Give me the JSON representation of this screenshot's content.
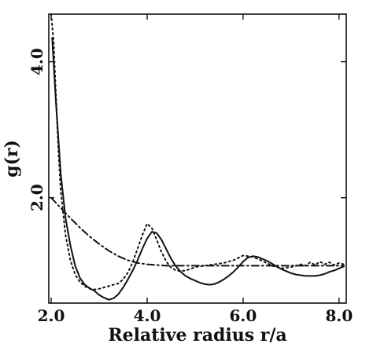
{
  "chart_data": {
    "type": "line",
    "title": "",
    "xlabel": "Relative radius r/a",
    "ylabel": "g(r)",
    "xlim": [
      1.95,
      8.15
    ],
    "ylim": [
      0.45,
      4.7
    ],
    "xticks": [
      2.0,
      4.0,
      6.0,
      8.0
    ],
    "xtick_labels": [
      "2.0",
      "4.0",
      "6.0",
      "8.0"
    ],
    "yticks": [
      2.0,
      4.0
    ],
    "ytick_labels": [
      "2.0",
      "4.0"
    ],
    "grid": false,
    "legend": "none",
    "series": [
      {
        "style": "solid",
        "x": [
          2.02,
          2.1,
          2.2,
          2.3,
          2.4,
          2.5,
          2.6,
          2.7,
          2.8,
          2.9,
          3.0,
          3.1,
          3.2,
          3.3,
          3.4,
          3.5,
          3.6,
          3.7,
          3.8,
          3.9,
          4.0,
          4.1,
          4.2,
          4.3,
          4.4,
          4.5,
          4.6,
          4.7,
          4.8,
          4.9,
          5.0,
          5.1,
          5.2,
          5.3,
          5.4,
          5.5,
          5.6,
          5.7,
          5.8,
          5.9,
          6.0,
          6.1,
          6.2,
          6.3,
          6.4,
          6.5,
          6.6,
          6.7,
          6.8,
          6.9,
          7.0,
          7.1,
          7.2,
          7.3,
          7.4,
          7.5,
          7.6,
          7.7,
          7.8,
          7.9,
          8.0,
          8.1
        ],
        "y": [
          4.35,
          3.4,
          2.35,
          1.7,
          1.3,
          1.0,
          0.82,
          0.72,
          0.67,
          0.63,
          0.57,
          0.53,
          0.5,
          0.52,
          0.58,
          0.68,
          0.8,
          0.93,
          1.08,
          1.25,
          1.4,
          1.5,
          1.48,
          1.38,
          1.24,
          1.1,
          0.99,
          0.91,
          0.85,
          0.81,
          0.78,
          0.75,
          0.73,
          0.72,
          0.73,
          0.76,
          0.8,
          0.85,
          0.91,
          0.98,
          1.06,
          1.12,
          1.14,
          1.13,
          1.1,
          1.07,
          1.03,
          0.99,
          0.95,
          0.92,
          0.89,
          0.87,
          0.86,
          0.85,
          0.85,
          0.85,
          0.86,
          0.88,
          0.91,
          0.93,
          0.96,
          0.99
        ]
      },
      {
        "style": "dotted",
        "x": [
          2.0,
          2.05,
          2.1,
          2.15,
          2.2,
          2.3,
          2.4,
          2.5,
          2.6,
          2.7,
          2.8,
          2.9,
          3.0,
          3.1,
          3.2,
          3.3,
          3.4,
          3.5,
          3.6,
          3.7,
          3.8,
          3.9,
          4.0,
          4.1,
          4.2,
          4.3,
          4.4,
          4.5,
          4.6,
          4.7,
          4.8,
          4.9,
          5.0,
          5.2,
          5.4,
          5.6,
          5.8,
          6.0,
          6.2,
          6.4,
          6.6,
          6.8,
          7.0,
          7.2,
          7.3,
          7.4,
          7.5,
          7.6,
          7.7,
          7.8,
          7.9,
          8.0,
          8.1
        ],
        "y": [
          4.7,
          4.3,
          3.5,
          2.7,
          2.1,
          1.45,
          1.08,
          0.87,
          0.76,
          0.7,
          0.66,
          0.65,
          0.66,
          0.68,
          0.7,
          0.72,
          0.74,
          0.8,
          0.9,
          1.05,
          1.25,
          1.45,
          1.62,
          1.55,
          1.38,
          1.2,
          1.06,
          0.97,
          0.93,
          0.92,
          0.93,
          0.95,
          0.98,
          1.0,
          1.02,
          1.04,
          1.08,
          1.15,
          1.13,
          1.07,
          1.0,
          0.96,
          0.98,
          1.02,
          1.0,
          1.05,
          1.01,
          1.06,
          1.02,
          1.05,
          1.01,
          1.04,
          1.02
        ]
      },
      {
        "style": "dash-dot",
        "x": [
          2.0,
          2.2,
          2.4,
          2.6,
          2.8,
          3.0,
          3.2,
          3.4,
          3.6,
          3.8,
          4.0,
          4.2,
          4.4,
          5.0,
          6.0,
          7.0,
          8.0,
          8.1
        ],
        "y": [
          2.0,
          1.85,
          1.7,
          1.56,
          1.43,
          1.32,
          1.22,
          1.14,
          1.08,
          1.04,
          1.02,
          1.01,
          1.0,
          1.0,
          1.0,
          1.0,
          1.0,
          1.0
        ]
      }
    ]
  }
}
